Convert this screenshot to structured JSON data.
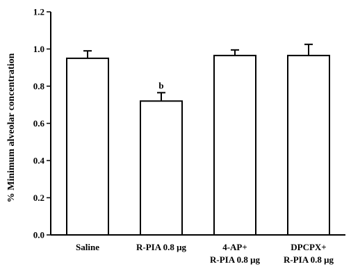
{
  "chart_data": {
    "type": "bar",
    "title": "",
    "xlabel": "",
    "ylabel": "% Minimum alveolar concentration",
    "ylim": [
      0.0,
      1.2
    ],
    "yticks": [
      "0.0",
      "0.2",
      "0.4",
      "0.6",
      "0.8",
      "1.0",
      "1.2"
    ],
    "categories": [
      [
        "Saline"
      ],
      [
        "R-PIA 0.8 μg"
      ],
      [
        "4-AP+",
        "R-PIA 0.8 μg"
      ],
      [
        "DPCPX+",
        "R-PIA 0.8 μg"
      ]
    ],
    "values": [
      0.95,
      0.72,
      0.965,
      0.965
    ],
    "errors": [
      0.04,
      0.045,
      0.03,
      0.06
    ],
    "annotations": [
      "",
      "b",
      "",
      ""
    ],
    "bar_fill": "#ffffff",
    "bar_stroke": "#000000",
    "grid": false
  }
}
